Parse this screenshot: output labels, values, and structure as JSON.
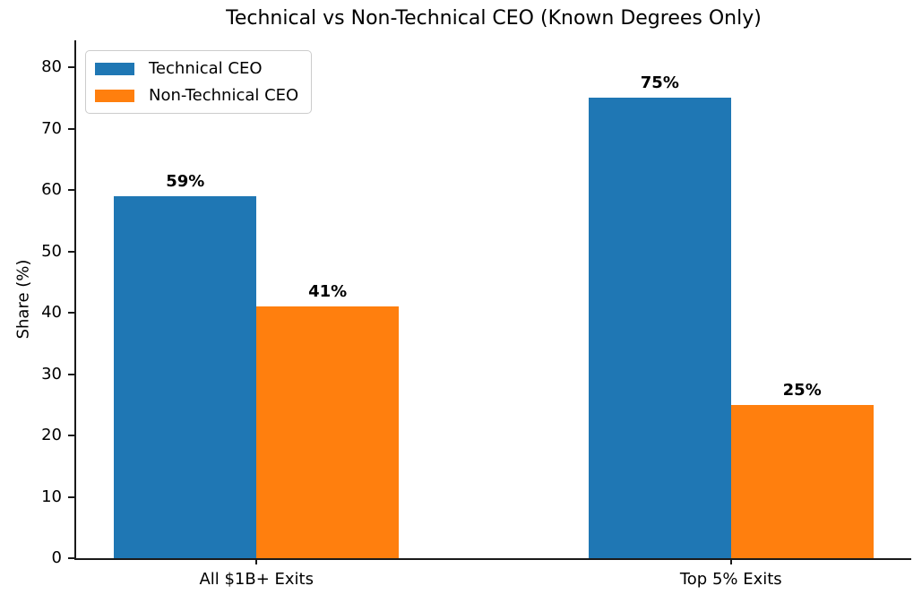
{
  "title": "Technical vs Non-Technical CEO (Known Degrees Only)",
  "chart_data": {
    "type": "bar",
    "title": "Technical vs Non-Technical CEO (Known Degrees Only)",
    "categories": [
      "All $1B+ Exits",
      "Top 5% Exits"
    ],
    "series": [
      {
        "name": "Technical CEO",
        "color": "#1f77b4",
        "values": [
          59,
          75
        ],
        "value_labels": [
          "59%",
          "75%"
        ]
      },
      {
        "name": "Non-Technical CEO",
        "color": "#ff7f0e",
        "values": [
          41,
          25
        ],
        "value_labels": [
          "41%",
          "25%"
        ]
      }
    ],
    "xlabel": "",
    "ylabel": "Share (%)",
    "yticks": [
      0,
      10,
      20,
      30,
      40,
      50,
      60,
      70,
      80
    ],
    "ylim": [
      0,
      84.4
    ],
    "xlim": [
      -0.38,
      1.38
    ],
    "bar_width": 0.3,
    "grid": false,
    "legend_position": "upper left"
  }
}
